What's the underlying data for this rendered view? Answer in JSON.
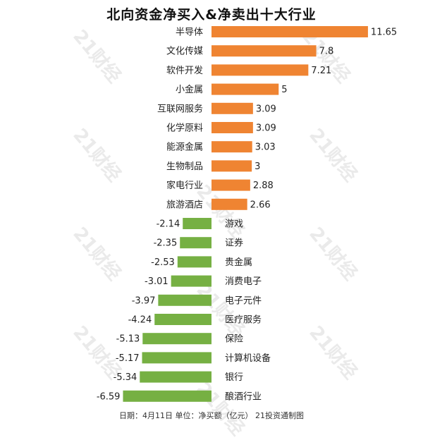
{
  "title": "北向资金净买入&净卖出十大行业",
  "footer": "日期：4月11日  单位：净买额（亿元）  21投资通制图",
  "watermark": "21财经",
  "colors": {
    "positive": "#ef8432",
    "negative": "#76b043"
  },
  "chart_data": {
    "type": "bar",
    "orientation": "horizontal",
    "title": "北向资金净买入&净卖出十大行业",
    "categories": [
      "半导体",
      "文化传媒",
      "软件开发",
      "小金属",
      "互联网服务",
      "化学原料",
      "能源金属",
      "生物制品",
      "家电行业",
      "旅游酒店",
      "游戏",
      "证券",
      "贵金属",
      "消费电子",
      "电子元件",
      "医疗服务",
      "保险",
      "计算机设备",
      "银行",
      "酿酒行业"
    ],
    "values": [
      11.65,
      7.8,
      7.21,
      5,
      3.09,
      3.09,
      3.03,
      3,
      2.88,
      2.66,
      -2.14,
      -2.35,
      -2.53,
      -3.01,
      -3.97,
      -4.24,
      -5.13,
      -5.17,
      -5.34,
      -6.59
    ],
    "value_labels": [
      "11.65",
      "7.8",
      "7.21",
      "5",
      "3.09",
      "3.09",
      "3.03",
      "3",
      "2.88",
      "2.66",
      "-2.14",
      "-2.35",
      "-2.53",
      "-3.01",
      "-3.97",
      "-4.24",
      "-5.13",
      "-5.17",
      "-5.34",
      "-6.59"
    ]
  }
}
